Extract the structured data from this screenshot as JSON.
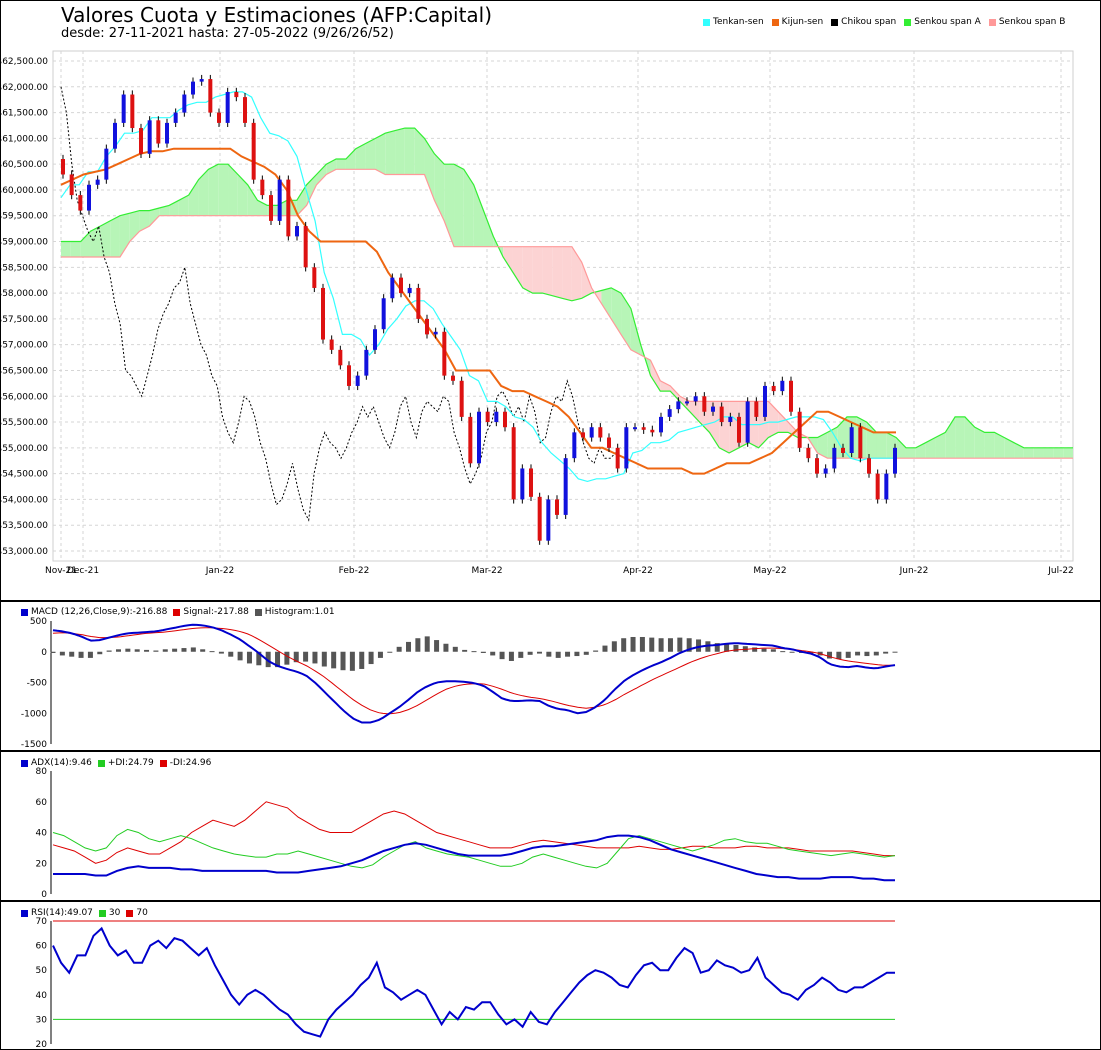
{
  "header": {
    "title": "Valores Cuota y Estimaciones (AFP:Capital)",
    "subtitle": "desde: 27-11-2021 hasta: 27-05-2022 (9/26/26/52)"
  },
  "legend": [
    {
      "label": "Tenkan-sen",
      "color": "#33ffff"
    },
    {
      "label": "Kijun-sen",
      "color": "#ee6611"
    },
    {
      "label": "Chikou span",
      "color": "#000000"
    },
    {
      "label": "Senkou span A",
      "color": "#33ee33"
    },
    {
      "label": "Senkou span B",
      "color": "#ff9999"
    }
  ],
  "panels": {
    "macd_legend": [
      {
        "label": "MACD (12,26,Close,9):-216.88",
        "color": "#0000cc"
      },
      {
        "label": "Signal:-217.88",
        "color": "#dd0000"
      },
      {
        "label": "Histogram:1.01",
        "color": "#555555"
      }
    ],
    "adx_legend": [
      {
        "label": "ADX(14):9.46",
        "color": "#0000cc"
      },
      {
        "label": "+DI:24.79",
        "color": "#22cc22"
      },
      {
        "label": "-DI:24.96",
        "color": "#dd0000"
      }
    ],
    "rsi_legend": [
      {
        "label": "RSI(14):49.07",
        "color": "#0000cc"
      },
      {
        "label": "30",
        "color": "#22cc22"
      },
      {
        "label": "70",
        "color": "#dd0000"
      }
    ]
  },
  "chart_data": [
    {
      "type": "candlestick",
      "ylim": [
        53000,
        62500
      ],
      "y_ticks": [
        "$53,000.00",
        "$53,500.00",
        "$54,000.00",
        "$54,500.00",
        "$55,000.00",
        "$55,500.00",
        "$56,000.00",
        "$56,500.00",
        "$57,000.00",
        "$57,500.00",
        "$58,000.00",
        "$58,500.00",
        "$59,000.00",
        "$59,500.00",
        "$60,000.00",
        "$60,500.00",
        "$61,000.00",
        "$61,500.00",
        "$62,000.00",
        "$62,500.00"
      ],
      "x_ticks": [
        "Nov-21",
        "Dec-21",
        "Jan-22",
        "Feb-22",
        "Mar-22",
        "Apr-22",
        "May-22",
        "Jun-22",
        "Jul-22"
      ],
      "close": [
        60300,
        59900,
        59600,
        60100,
        60200,
        60800,
        61300,
        61850,
        61200,
        60700,
        61350,
        60900,
        61300,
        61500,
        61850,
        62100,
        62150,
        61500,
        61300,
        61900,
        61800,
        61300,
        60200,
        59900,
        59400,
        60200,
        59100,
        59300,
        58500,
        58100,
        57100,
        56900,
        56600,
        56200,
        56400,
        56900,
        57300,
        57900,
        58300,
        58000,
        58100,
        57500,
        57200,
        57250,
        56400,
        56300,
        55600,
        54700,
        55700,
        55500,
        55700,
        55400,
        54000,
        54600,
        54050,
        53200,
        54000,
        53700,
        54800,
        55300,
        55200,
        55400,
        55200,
        55000,
        54600,
        55400,
        55400,
        55350,
        55300,
        55600,
        55750,
        55900,
        55900,
        56000,
        55700,
        55800,
        55500,
        55600,
        55100,
        55900,
        55600,
        56200,
        56100,
        56300,
        55700,
        55000,
        54800,
        54500,
        54600,
        55000,
        54900,
        55400,
        54800,
        54500,
        54000,
        54500,
        55000
      ],
      "tenkan": [
        59850,
        60100,
        60100,
        60350,
        60350,
        60650,
        60850,
        61100,
        61100,
        61150,
        61400,
        61400,
        61400,
        61550,
        61650,
        61700,
        61700,
        61800,
        61850,
        61900,
        61900,
        61800,
        61400,
        61100,
        61050,
        60950,
        60650,
        60000,
        59400,
        58400,
        57900,
        57200,
        57200,
        57100,
        56800,
        57000,
        57300,
        57500,
        57750,
        57850,
        57850,
        57700,
        57400,
        57150,
        56900,
        56400,
        56300,
        55900,
        55900,
        55800,
        55600,
        55550,
        55400,
        55100,
        54900,
        54750,
        54600,
        54400,
        54350,
        54400,
        54400,
        54450,
        54500,
        54900,
        54950,
        55100,
        55100,
        55150,
        55300,
        55350,
        55400,
        55450,
        55500,
        55600,
        55600,
        55450,
        55450,
        55450,
        55500,
        55500,
        55550,
        55600,
        55600,
        55600,
        55550,
        55300,
        55000,
        54800,
        54750,
        54800,
        54800,
        54800,
        54800
      ],
      "kijun": [
        60100,
        60200,
        60300,
        60350,
        60400,
        60500,
        60600,
        60700,
        60750,
        60750,
        60800,
        60800,
        60800,
        60800,
        60800,
        60800,
        60650,
        60550,
        60450,
        60300,
        60000,
        59500,
        59200,
        59000,
        59000,
        59000,
        59000,
        59000,
        58800,
        58400,
        58100,
        57800,
        57500,
        57200,
        56900,
        56500,
        56500,
        56500,
        56500,
        56200,
        56100,
        56100,
        56000,
        55900,
        55800,
        55600,
        55300,
        55000,
        55000,
        54900,
        54800,
        54700,
        54600,
        54600,
        54600,
        54600,
        54500,
        54500,
        54600,
        54700,
        54700,
        54700,
        54800,
        54900,
        55100,
        55300,
        55500,
        55700,
        55700,
        55600,
        55500,
        55400,
        55300,
        55300,
        55300
      ]
    },
    {
      "type": "line",
      "name": "MACD",
      "ylim": [
        -1500,
        500
      ],
      "y_ticks": [
        "500",
        "0",
        "-500",
        "-1000",
        "-1500"
      ],
      "macd": [
        350,
        330,
        300,
        250,
        180,
        190,
        230,
        270,
        300,
        310,
        320,
        330,
        360,
        390,
        420,
        440,
        430,
        400,
        350,
        280,
        200,
        90,
        -20,
        -150,
        -230,
        -280,
        -320,
        -380,
        -500,
        -650,
        -800,
        -950,
        -1080,
        -1150,
        -1150,
        -1100,
        -1000,
        -900,
        -780,
        -650,
        -560,
        -500,
        -480,
        -480,
        -490,
        -510,
        -550,
        -650,
        -760,
        -800,
        -800,
        -790,
        -800,
        -880,
        -930,
        -950,
        -1000,
        -980,
        -900,
        -780,
        -620,
        -480,
        -380,
        -300,
        -230,
        -170,
        -100,
        -20,
        40,
        80,
        100,
        110,
        130,
        140,
        130,
        120,
        110,
        100,
        60,
        40,
        0,
        -30,
        -90,
        -200,
        -240,
        -250,
        -230,
        -260,
        -270,
        -240,
        -217
      ],
      "signal": [
        300,
        310,
        300,
        280,
        250,
        230,
        230,
        240,
        260,
        280,
        300,
        310,
        320,
        340,
        360,
        380,
        390,
        390,
        380,
        360,
        330,
        280,
        200,
        110,
        20,
        -70,
        -150,
        -220,
        -310,
        -410,
        -530,
        -650,
        -770,
        -870,
        -950,
        -1000,
        -1010,
        -990,
        -940,
        -870,
        -780,
        -690,
        -610,
        -560,
        -530,
        -520,
        -520,
        -560,
        -610,
        -670,
        -710,
        -740,
        -760,
        -790,
        -830,
        -870,
        -900,
        -920,
        -900,
        -860,
        -790,
        -700,
        -620,
        -540,
        -460,
        -390,
        -320,
        -250,
        -180,
        -120,
        -70,
        -30,
        10,
        30,
        40,
        50,
        60,
        60,
        50,
        40,
        20,
        0,
        -30,
        -80,
        -120,
        -150,
        -170,
        -190,
        -210,
        -220,
        -217
      ],
      "histogram": [
        -20,
        -60,
        -80,
        -100,
        -100,
        -40,
        20,
        40,
        50,
        40,
        30,
        20,
        40,
        50,
        60,
        70,
        40,
        10,
        -30,
        -80,
        -140,
        -190,
        -220,
        -250,
        -250,
        -210,
        -170,
        -160,
        -190,
        -240,
        -270,
        -300,
        -310,
        -280,
        -200,
        -100,
        0,
        80,
        160,
        220,
        250,
        190,
        130,
        80,
        30,
        10,
        -20,
        -60,
        -120,
        -150,
        -100,
        -50,
        -30,
        -80,
        -100,
        -80,
        -70,
        -50,
        20,
        100,
        170,
        220,
        240,
        240,
        230,
        220,
        220,
        230,
        220,
        200,
        170,
        140,
        120,
        110,
        90,
        70,
        50,
        40,
        10,
        0,
        -20,
        -30,
        -60,
        -110,
        -120,
        -100,
        -60,
        -70,
        -60,
        -30,
        1
      ]
    },
    {
      "type": "line",
      "name": "ADX",
      "ylim": [
        0,
        80
      ],
      "y_ticks": [
        "80",
        "60",
        "40",
        "20",
        "0"
      ],
      "adx": [
        13,
        13,
        13,
        13,
        12,
        12,
        15,
        17,
        18,
        17,
        17,
        17,
        16,
        16,
        15,
        15,
        15,
        15,
        15,
        15,
        15,
        14,
        14,
        14,
        15,
        16,
        17,
        18,
        20,
        22,
        25,
        28,
        30,
        32,
        33,
        32,
        30,
        28,
        26,
        25,
        25,
        25,
        25,
        26,
        28,
        30,
        31,
        31,
        32,
        33,
        34,
        35,
        37,
        38,
        38,
        37,
        35,
        32,
        29,
        27,
        25,
        23,
        21,
        19,
        17,
        15,
        13,
        12,
        11,
        11,
        10,
        10,
        10,
        11,
        11,
        11,
        10,
        10,
        9,
        9
      ],
      "plus_di": [
        40,
        38,
        34,
        30,
        28,
        30,
        38,
        42,
        40,
        36,
        34,
        36,
        38,
        36,
        33,
        30,
        28,
        26,
        25,
        24,
        24,
        26,
        26,
        28,
        26,
        24,
        22,
        20,
        18,
        17,
        19,
        24,
        28,
        32,
        34,
        30,
        28,
        26,
        25,
        24,
        22,
        20,
        18,
        18,
        20,
        24,
        26,
        24,
        22,
        20,
        18,
        17,
        20,
        28,
        36,
        38,
        36,
        34,
        32,
        30,
        28,
        30,
        32,
        35,
        36,
        34,
        33,
        33,
        31,
        29,
        28,
        27,
        26,
        25,
        26,
        27,
        26,
        25,
        24,
        25
      ],
      "minus_di": [
        32,
        30,
        28,
        24,
        20,
        22,
        27,
        30,
        28,
        26,
        26,
        30,
        34,
        40,
        44,
        48,
        46,
        44,
        48,
        54,
        60,
        58,
        56,
        50,
        46,
        42,
        40,
        40,
        40,
        44,
        48,
        52,
        54,
        52,
        48,
        44,
        40,
        38,
        36,
        34,
        32,
        30,
        30,
        30,
        32,
        34,
        35,
        34,
        33,
        32,
        31,
        30,
        30,
        30,
        30,
        31,
        30,
        29,
        29,
        30,
        31,
        31,
        30,
        30,
        30,
        31,
        31,
        30,
        30,
        30,
        29,
        28,
        28,
        28,
        28,
        28,
        27,
        26,
        25,
        25
      ]
    },
    {
      "type": "line",
      "name": "RSI",
      "ylim": [
        20,
        70
      ],
      "y_ticks": [
        "70",
        "60",
        "50",
        "40",
        "30",
        "20"
      ],
      "rsi": [
        60,
        53,
        49,
        56,
        56,
        64,
        67,
        60,
        56,
        58,
        53,
        53,
        60,
        62,
        59,
        63,
        62,
        59,
        56,
        59,
        52,
        46,
        40,
        36,
        40,
        42,
        40,
        37,
        34,
        32,
        28,
        25,
        24,
        23,
        30,
        34,
        37,
        40,
        44,
        47,
        53,
        43,
        41,
        38,
        40,
        42,
        40,
        34,
        28,
        33,
        30,
        35,
        34,
        37,
        37,
        32,
        28,
        30,
        27,
        33,
        29,
        28,
        33,
        37,
        41,
        45,
        48,
        50,
        49,
        47,
        44,
        43,
        48,
        52,
        53,
        50,
        50,
        55,
        59,
        57,
        49,
        50,
        54,
        52,
        51,
        49,
        50,
        55,
        47,
        44,
        41,
        40,
        38,
        42,
        44,
        47,
        45,
        42,
        41,
        43,
        43,
        45,
        47,
        49,
        49
      ],
      "oversold": 30,
      "overbought": 70
    }
  ]
}
